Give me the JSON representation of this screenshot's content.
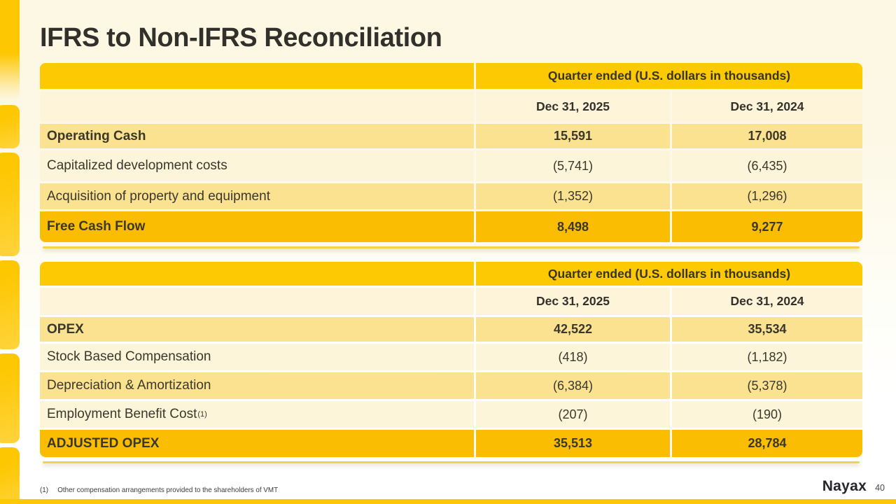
{
  "slide": {
    "title": "IFRS to Non-IFRS Reconciliation",
    "footnote_marker": "(1)",
    "footnote_text": "Other compensation arrangements provided to the shareholders of VMT",
    "logo_text": "Nayax",
    "page_number": "40"
  },
  "colors": {
    "accent_gold": "#FDC902",
    "total_row_gold": "#FBBD02",
    "alt_row_gold": "#FBE291",
    "alt_row_cream": "#FDF5D9",
    "background_cream": "#FDF8E3",
    "text_dark": "#3A382C"
  },
  "tables": [
    {
      "header": "Quarter ended (U.S. dollars in thousands)",
      "columns": [
        "Dec 31, 2025",
        "Dec 31, 2024"
      ],
      "rows": [
        {
          "label": "Operating Cash",
          "values": [
            "15,591",
            "17,008"
          ],
          "kind": "strong"
        },
        {
          "label": "Capitalized development costs",
          "values": [
            "(5,741)",
            "(6,435)"
          ],
          "kind": "light"
        },
        {
          "label": "Acquisition of property and equipment",
          "values": [
            "(1,352)",
            "(1,296)"
          ],
          "kind": "mid"
        },
        {
          "label": "Free Cash Flow",
          "values": [
            "8,498",
            "9,277"
          ],
          "kind": "total"
        }
      ]
    },
    {
      "header": "Quarter ended (U.S. dollars in thousands)",
      "columns": [
        "Dec 31, 2025",
        "Dec 31, 2024"
      ],
      "rows": [
        {
          "label": "OPEX",
          "values": [
            "42,522",
            "35,534"
          ],
          "kind": "strong"
        },
        {
          "label": "Stock Based Compensation",
          "values": [
            "(418)",
            "(1,182)"
          ],
          "kind": "light"
        },
        {
          "label": "Depreciation & Amortization",
          "values": [
            "(6,384)",
            "(5,378)"
          ],
          "kind": "mid"
        },
        {
          "label": "Employment Benefit Cost",
          "superscript": "(1)",
          "values": [
            "(207)",
            "(190)"
          ],
          "kind": "light"
        },
        {
          "label": "ADJUSTED OPEX",
          "values": [
            "35,513",
            "28,784"
          ],
          "kind": "total"
        }
      ]
    }
  ]
}
